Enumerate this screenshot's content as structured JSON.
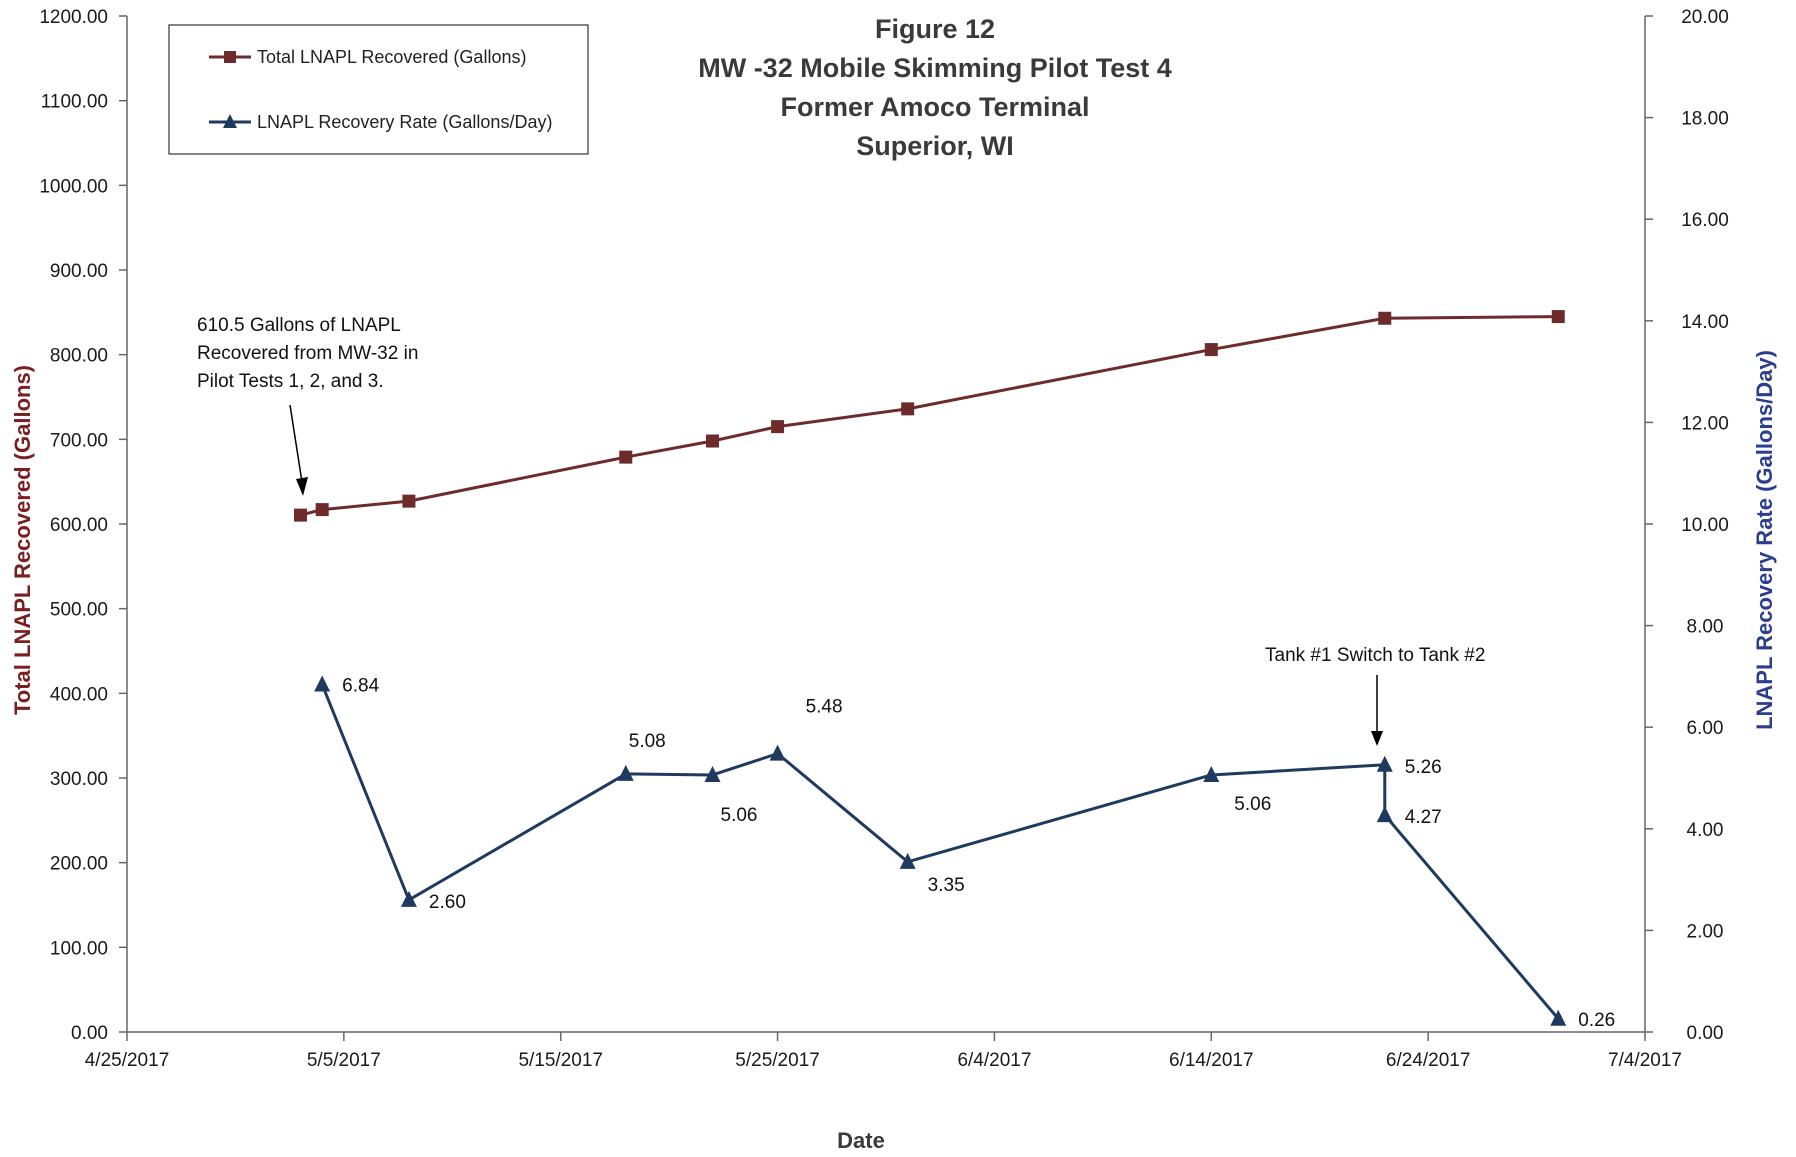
{
  "chart_data": {
    "type": "line",
    "title": [
      "Figure 12",
      "MW -32 Mobile Skimming Pilot Test 4",
      "Former Amoco Terminal",
      "Superior, WI"
    ],
    "xlabel": "Date",
    "ylabel_left": "Total LNAPL Recovered (Gallons)",
    "ylabel_right": "LNAPL Recovery Rate (Gallons/Day)",
    "x_ticks": [
      "4/25/2017",
      "5/5/2017",
      "5/15/2017",
      "5/25/2017",
      "6/4/2017",
      "6/14/2017",
      "6/24/2017",
      "7/4/2017"
    ],
    "x_range": [
      "2017-04-25",
      "2017-07-04"
    ],
    "y_left_ticks": [
      "0.00",
      "100.00",
      "200.00",
      "300.00",
      "400.00",
      "500.00",
      "600.00",
      "700.00",
      "800.00",
      "900.00",
      "1000.00",
      "1100.00",
      "1200.00"
    ],
    "y_left_range": [
      0,
      1200
    ],
    "y_right_ticks": [
      "0.00",
      "2.00",
      "4.00",
      "6.00",
      "8.00",
      "10.00",
      "12.00",
      "14.00",
      "16.00",
      "18.00",
      "20.00"
    ],
    "y_right_range": [
      0,
      20
    ],
    "grid": false,
    "legend_placement": "top-left",
    "series": [
      {
        "name": "Total LNAPL Recovered (Gallons)",
        "axis": "left",
        "marker": "square",
        "color": "#6e2b2b",
        "points": [
          {
            "x": "2017-05-03",
            "y": 610.5
          },
          {
            "x": "2017-05-04",
            "y": 617
          },
          {
            "x": "2017-05-08",
            "y": 627
          },
          {
            "x": "2017-05-18",
            "y": 679
          },
          {
            "x": "2017-05-22",
            "y": 698
          },
          {
            "x": "2017-05-25",
            "y": 715
          },
          {
            "x": "2017-05-31",
            "y": 736
          },
          {
            "x": "2017-06-14",
            "y": 806
          },
          {
            "x": "2017-06-22",
            "y": 843
          },
          {
            "x": "2017-06-30",
            "y": 845
          }
        ]
      },
      {
        "name": "LNAPL Recovery Rate (Gallons/Day)",
        "axis": "right",
        "marker": "triangle",
        "color": "#1f3a5f",
        "points": [
          {
            "x": "2017-05-04",
            "y": 6.84,
            "label": "6.84"
          },
          {
            "x": "2017-05-08",
            "y": 2.6,
            "label": "2.60"
          },
          {
            "x": "2017-05-18",
            "y": 5.08,
            "label": "5.08"
          },
          {
            "x": "2017-05-22",
            "y": 5.06,
            "label": "5.06"
          },
          {
            "x": "2017-05-25",
            "y": 5.48,
            "label": "5.48"
          },
          {
            "x": "2017-05-31",
            "y": 3.35,
            "label": "3.35"
          },
          {
            "x": "2017-06-14",
            "y": 5.06,
            "label": "5.06"
          },
          {
            "x": "2017-06-22",
            "y": 5.26,
            "label": "5.26"
          },
          {
            "x": "2017-06-22",
            "y": 4.27,
            "label": "4.27"
          },
          {
            "x": "2017-06-30",
            "y": 0.26,
            "label": "0.26"
          }
        ]
      }
    ],
    "annotations": [
      {
        "lines": [
          "610.5 Gallons of LNAPL",
          "Recovered  from MW-32 in",
          "Pilot Tests 1, 2, and 3."
        ]
      },
      {
        "lines": [
          "Tank #1 Switch to Tank #2"
        ]
      }
    ]
  }
}
